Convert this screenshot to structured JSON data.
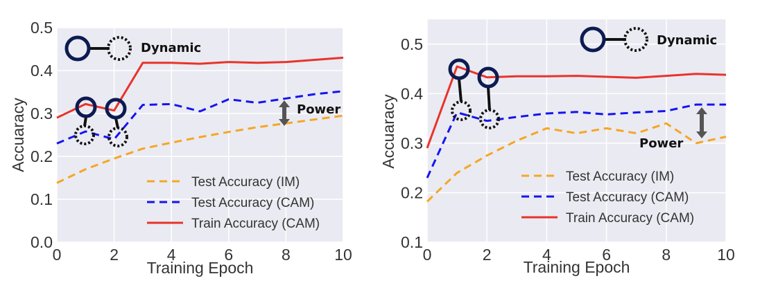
{
  "chart_data": [
    {
      "type": "line",
      "xlabel": "Training Epoch",
      "ylabel": "Accuaracy",
      "xlim": [
        0,
        10
      ],
      "ylim": [
        0.0,
        0.5
      ],
      "xticks": [
        "0",
        "2",
        "4",
        "6",
        "8",
        "10"
      ],
      "yticks": [
        "0.0",
        "0.1",
        "0.2",
        "0.3",
        "0.4",
        "0.5"
      ],
      "grid": true,
      "legend": "bottom-right",
      "x": [
        0,
        1,
        2,
        3,
        4,
        5,
        6,
        7,
        8,
        9,
        10
      ],
      "series": [
        {
          "name": "Test Accuracy (IM)",
          "color": "#f5a623",
          "style": "dashed",
          "values": [
            0.138,
            0.17,
            0.195,
            0.218,
            0.232,
            0.245,
            0.257,
            0.268,
            0.277,
            0.286,
            0.295
          ]
        },
        {
          "name": "Test Accuracy (CAM)",
          "color": "#1414f0",
          "style": "dashed",
          "values": [
            0.23,
            0.258,
            0.24,
            0.32,
            0.322,
            0.305,
            0.333,
            0.325,
            0.335,
            0.345,
            0.352
          ]
        },
        {
          "name": "Train Accuracy (CAM)",
          "color": "#e8332a",
          "style": "solid",
          "values": [
            0.29,
            0.322,
            0.307,
            0.418,
            0.418,
            0.416,
            0.42,
            0.418,
            0.42,
            0.425,
            0.43
          ]
        }
      ],
      "annotations": {
        "dynamic": "Dynamic",
        "power": "Power"
      }
    },
    {
      "type": "line",
      "xlabel": "Training Epoch",
      "ylabel": "Accuaracy",
      "xlim": [
        0,
        10
      ],
      "ylim": [
        0.1,
        0.55
      ],
      "xticks": [
        "0",
        "2",
        "4",
        "6",
        "8",
        "10"
      ],
      "yticks": [
        "0.1",
        "0.2",
        "0.3",
        "0.4",
        "0.5"
      ],
      "grid": true,
      "legend": "bottom-right",
      "x": [
        0,
        1,
        2,
        3,
        4,
        5,
        6,
        7,
        8,
        9,
        10
      ],
      "series": [
        {
          "name": "Test Accuracy (IM)",
          "color": "#f5a623",
          "style": "dashed",
          "values": [
            0.182,
            0.24,
            0.275,
            0.305,
            0.33,
            0.32,
            0.33,
            0.32,
            0.34,
            0.3,
            0.313
          ]
        },
        {
          "name": "Test Accuracy (CAM)",
          "color": "#1414f0",
          "style": "dashed",
          "values": [
            0.23,
            0.362,
            0.345,
            0.353,
            0.36,
            0.363,
            0.358,
            0.362,
            0.365,
            0.378,
            0.378
          ]
        },
        {
          "name": "Train Accuracy (CAM)",
          "color": "#e8332a",
          "style": "solid",
          "values": [
            0.29,
            0.455,
            0.433,
            0.435,
            0.435,
            0.436,
            0.434,
            0.432,
            0.436,
            0.44,
            0.438
          ]
        }
      ],
      "annotations": {
        "dynamic": "Dynamic",
        "power": "Power"
      }
    }
  ]
}
